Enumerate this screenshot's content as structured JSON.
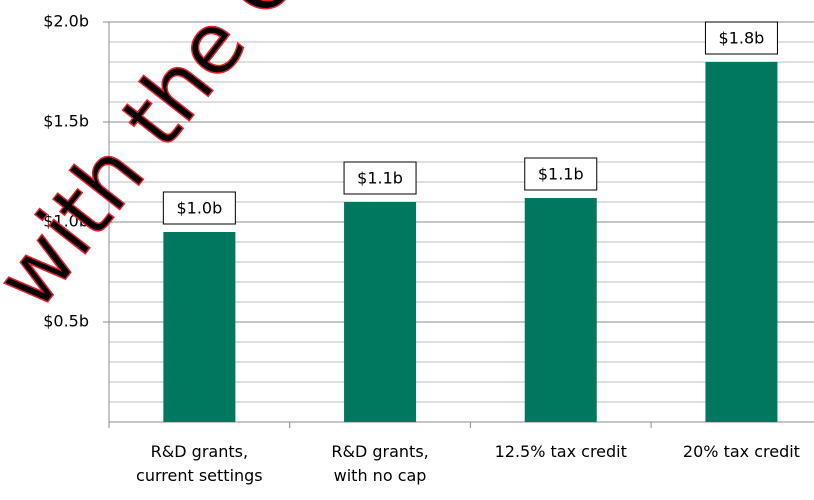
{
  "chart_data": {
    "type": "bar",
    "categories": [
      "R&D grants,\ncurrent settings",
      "R&D grants,\nwith no cap",
      "12.5% tax credit",
      "20% tax credit"
    ],
    "values": [
      0.95,
      1.1,
      1.12,
      1.8
    ],
    "value_labels": [
      "$1.0b",
      "$1.1b",
      "$1.1b",
      "$1.8b"
    ],
    "color": "#00785f",
    "ylim": [
      0,
      2
    ],
    "yticks": [
      {
        "value": 0.5,
        "label": "$0.5b"
      },
      {
        "value": 1.0,
        "label": "$1.0b"
      },
      {
        "value": 1.5,
        "label": "$1.5b"
      },
      {
        "value": 2.0,
        "label": "$2.0b"
      }
    ],
    "minor_yticks": [
      0.1,
      0.2,
      0.3,
      0.4,
      0.6,
      0.7,
      0.8,
      0.9,
      1.1,
      1.2,
      1.3,
      1.4,
      1.6,
      1.7,
      1.8,
      1.9
    ],
    "grid": true,
    "watermark": "with the O"
  }
}
